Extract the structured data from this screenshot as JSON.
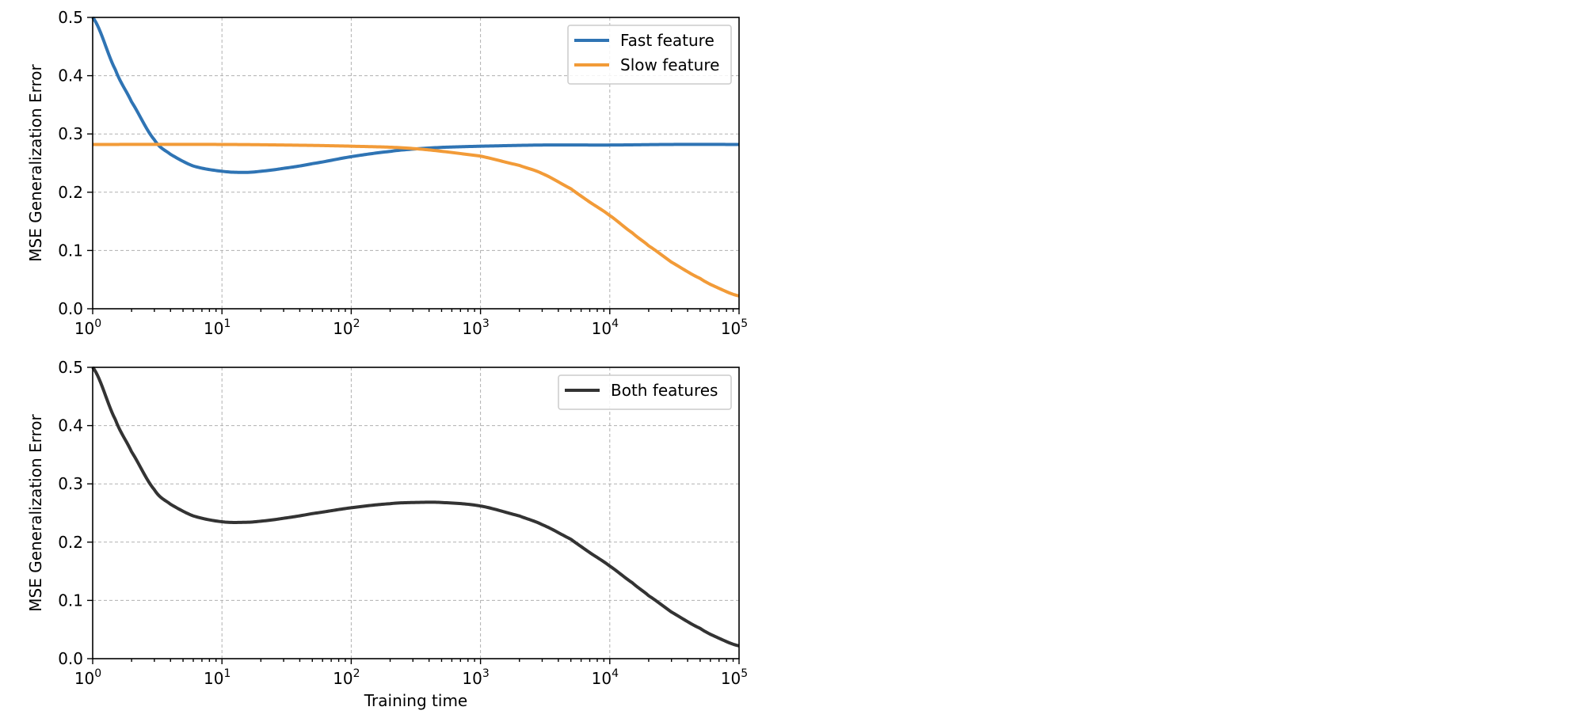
{
  "chart_data": [
    {
      "type": "line",
      "xscale": "log",
      "xlim": [
        1,
        100000
      ],
      "ylim": [
        0,
        0.5
      ],
      "xlabel": "",
      "ylabel": "MSE Generalization Error",
      "yticks": [
        "0.0",
        "0.1",
        "0.2",
        "0.3",
        "0.4",
        "0.5"
      ],
      "xticks": [
        {
          "base": "10",
          "exp": "0"
        },
        {
          "base": "10",
          "exp": "1"
        },
        {
          "base": "10",
          "exp": "2"
        },
        {
          "base": "10",
          "exp": "3"
        },
        {
          "base": "10",
          "exp": "4"
        },
        {
          "base": "10",
          "exp": "5"
        }
      ],
      "grid": true,
      "legend": "top-right",
      "series": [
        {
          "name": "Fast feature",
          "color": "#2f74b4",
          "x": [
            1,
            1.5,
            2,
            3,
            4,
            6,
            10,
            15,
            20,
            30,
            50,
            100,
            200,
            300,
            500,
            1000,
            3000,
            10000,
            30000,
            100000
          ],
          "y": [
            0.5,
            0.41,
            0.355,
            0.29,
            0.265,
            0.245,
            0.236,
            0.234,
            0.236,
            0.241,
            0.249,
            0.261,
            0.27,
            0.274,
            0.277,
            0.279,
            0.281,
            0.281,
            0.282,
            0.282
          ]
        },
        {
          "name": "Slow feature",
          "color": "#f29b38",
          "x": [
            1,
            10,
            30,
            100,
            300,
            1000,
            2000,
            3000,
            5000,
            7000,
            10000,
            15000,
            20000,
            30000,
            50000,
            70000,
            100000
          ],
          "y": [
            0.282,
            0.282,
            0.281,
            0.279,
            0.275,
            0.262,
            0.246,
            0.232,
            0.206,
            0.183,
            0.16,
            0.13,
            0.108,
            0.08,
            0.052,
            0.035,
            0.022
          ]
        }
      ]
    },
    {
      "type": "line",
      "xscale": "log",
      "xlim": [
        1,
        100000
      ],
      "ylim": [
        0,
        0.5
      ],
      "xlabel": "Training time",
      "ylabel": "MSE Generalization Error",
      "yticks": [
        "0.0",
        "0.1",
        "0.2",
        "0.3",
        "0.4",
        "0.5"
      ],
      "xticks": [
        {
          "base": "10",
          "exp": "0"
        },
        {
          "base": "10",
          "exp": "1"
        },
        {
          "base": "10",
          "exp": "2"
        },
        {
          "base": "10",
          "exp": "3"
        },
        {
          "base": "10",
          "exp": "4"
        },
        {
          "base": "10",
          "exp": "5"
        }
      ],
      "grid": true,
      "legend": "top-right",
      "series": [
        {
          "name": "Both features",
          "color": "#333333",
          "x": [
            1,
            1.5,
            2,
            3,
            4,
            6,
            10,
            15,
            20,
            30,
            50,
            100,
            200,
            300,
            500,
            1000,
            2000,
            3000,
            5000,
            7000,
            10000,
            15000,
            20000,
            30000,
            50000,
            70000,
            100000
          ],
          "y": [
            0.5,
            0.41,
            0.355,
            0.29,
            0.265,
            0.245,
            0.235,
            0.234,
            0.236,
            0.241,
            0.249,
            0.259,
            0.266,
            0.268,
            0.268,
            0.262,
            0.245,
            0.23,
            0.205,
            0.182,
            0.159,
            0.13,
            0.108,
            0.08,
            0.052,
            0.035,
            0.022
          ]
        }
      ]
    }
  ]
}
